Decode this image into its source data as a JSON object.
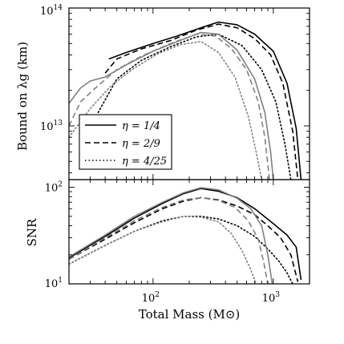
{
  "chart_data": [
    {
      "type": "line",
      "panel": "top",
      "xscale": "log",
      "yscale": "log",
      "xlim": [
        20,
        2000
      ],
      "ylim": [
        3500000000000.0,
        100000000000000.0
      ],
      "ylabel": "Bound on λg (km)",
      "ytick_labels": [
        {
          "value": 100000000000000.0,
          "base": "10",
          "exp": "14"
        },
        {
          "value": 10000000000000.0,
          "base": "10",
          "exp": "13"
        }
      ],
      "legend": {
        "placement": "lower-left",
        "entries": [
          {
            "style": "solid",
            "label": "η = 1/4"
          },
          {
            "style": "dashed",
            "label": "η = 2/9"
          },
          {
            "style": "dotted",
            "label": "η = 4/25"
          }
        ]
      },
      "series": [
        {
          "style": "solid",
          "color": "#000000",
          "x": [
            43,
            60,
            100,
            160,
            250,
            350,
            500,
            700,
            1000,
            1300,
            1550,
            1700
          ],
          "y": [
            37000000000000.0,
            42000000000000.0,
            50000000000000.0,
            58000000000000.0,
            68000000000000.0,
            76000000000000.0,
            72000000000000.0,
            60000000000000.0,
            43000000000000.0,
            23000000000000.0,
            9500000000000.0,
            3500000000000.0
          ]
        },
        {
          "style": "dashed",
          "color": "#000000",
          "x": [
            40,
            50,
            80,
            140,
            230,
            350,
            500,
            700,
            950,
            1200,
            1450,
            1600
          ],
          "y": [
            28000000000000.0,
            37000000000000.0,
            45000000000000.0,
            53000000000000.0,
            65000000000000.0,
            73000000000000.0,
            68000000000000.0,
            55000000000000.0,
            40000000000000.0,
            23000000000000.0,
            9000000000000.0,
            3500000000000.0
          ]
        },
        {
          "style": "dotted",
          "color": "#000000",
          "x": [
            35,
            50,
            80,
            140,
            230,
            350,
            550,
            800,
            1050,
            1250,
            1400
          ],
          "y": [
            13000000000000.0,
            25000000000000.0,
            36000000000000.0,
            47000000000000.0,
            57000000000000.0,
            60000000000000.0,
            48000000000000.0,
            30000000000000.0,
            16000000000000.0,
            7000000000000.0,
            3500000000000.0
          ]
        },
        {
          "style": "solid",
          "color": "#808080",
          "x": [
            20,
            25,
            30,
            40,
            60,
            100,
            160,
            250,
            350,
            500,
            700,
            850,
            950,
            1000
          ],
          "y": [
            15500000000000.0,
            21000000000000.0,
            24000000000000.0,
            26000000000000.0,
            33000000000000.0,
            43000000000000.0,
            52000000000000.0,
            62000000000000.0,
            60000000000000.0,
            44000000000000.0,
            25000000000000.0,
            13000000000000.0,
            6000000000000.0,
            3500000000000.0
          ]
        },
        {
          "style": "dashed",
          "color": "#808080",
          "x": [
            20,
            25,
            35,
            50,
            80,
            140,
            230,
            330,
            450,
            600,
            750,
            850,
            930
          ],
          "y": [
            10000000000000.0,
            16000000000000.0,
            22000000000000.0,
            30000000000000.0,
            39000000000000.0,
            50000000000000.0,
            60000000000000.0,
            58000000000000.0,
            45000000000000.0,
            30000000000000.0,
            16000000000000.0,
            8000000000000.0,
            3500000000000.0
          ]
        },
        {
          "style": "dotted",
          "color": "#808080",
          "x": [
            20,
            30,
            45,
            70,
            110,
            170,
            250,
            350,
            480,
            620,
            720,
            800
          ],
          "y": [
            8000000000000.0,
            14000000000000.0,
            22000000000000.0,
            31000000000000.0,
            41000000000000.0,
            49000000000000.0,
            52000000000000.0,
            42000000000000.0,
            26000000000000.0,
            12000000000000.0,
            6000000000000.0,
            3500000000000.0
          ]
        }
      ]
    },
    {
      "type": "line",
      "panel": "bottom",
      "xscale": "log",
      "yscale": "log",
      "xlim": [
        20,
        2000
      ],
      "ylim": [
        10,
        120
      ],
      "xlabel": "Total Mass (M⊙)",
      "ylabel": "SNR",
      "xtick_labels": [
        {
          "value": 100,
          "base": "10",
          "exp": "2"
        },
        {
          "value": 1000,
          "base": "10",
          "exp": "3"
        }
      ],
      "ytick_labels": [
        {
          "value": 100,
          "base": "10",
          "exp": "2"
        },
        {
          "value": 10,
          "base": "10",
          "exp": "1"
        }
      ],
      "series": [
        {
          "style": "solid",
          "color": "#000000",
          "x": [
            20,
            40,
            70,
            120,
            180,
            250,
            350,
            500,
            700,
            1000,
            1300,
            1550,
            1700
          ],
          "y": [
            18.5,
            31,
            48,
            68,
            86,
            97,
            91,
            78,
            60,
            42,
            32,
            24,
            11
          ]
        },
        {
          "style": "dashed",
          "color": "#000000",
          "x": [
            20,
            40,
            70,
            120,
            180,
            250,
            350,
            500,
            700,
            900,
            1150,
            1400,
            1600
          ],
          "y": [
            18,
            29,
            43,
            60,
            72,
            78,
            74,
            64,
            52,
            40,
            30,
            20,
            10.5
          ]
        },
        {
          "style": "dotted",
          "color": "#000000",
          "x": [
            20,
            40,
            70,
            120,
            180,
            250,
            350,
            500,
            700,
            900,
            1100,
            1300,
            1450
          ],
          "y": [
            16,
            25,
            35,
            45,
            50,
            50,
            47,
            40,
            31,
            23,
            17.5,
            13,
            10
          ]
        },
        {
          "style": "solid",
          "color": "#808080",
          "x": [
            20,
            40,
            70,
            120,
            180,
            250,
            350,
            500,
            650,
            800,
            900,
            980
          ],
          "y": [
            19,
            32,
            50,
            70,
            88,
            99,
            94,
            77,
            60,
            40,
            20,
            10
          ]
        },
        {
          "style": "dashed",
          "color": "#808080",
          "x": [
            20,
            40,
            70,
            120,
            180,
            250,
            350,
            480,
            620,
            750,
            830,
            900
          ],
          "y": [
            18,
            30,
            45,
            62,
            74,
            78,
            73,
            62,
            45,
            29,
            17,
            10
          ]
        },
        {
          "style": "dotted",
          "color": "#808080",
          "x": [
            20,
            40,
            70,
            120,
            180,
            250,
            350,
            450,
            550,
            650,
            720
          ],
          "y": [
            16,
            25,
            35,
            44,
            50,
            49,
            44,
            33,
            22,
            14,
            10
          ]
        }
      ]
    }
  ]
}
